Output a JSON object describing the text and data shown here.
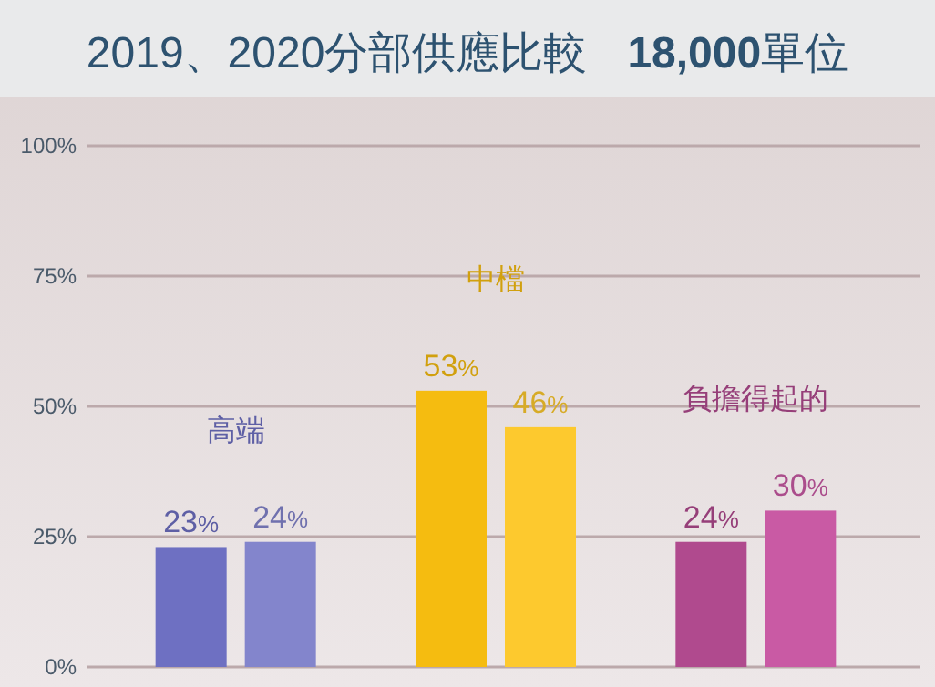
{
  "chart_data": {
    "type": "bar",
    "title": "2019、2020分部供應比較",
    "subtitle": "18,000單位",
    "categories": [
      "高端",
      "中檔",
      "負擔得起的"
    ],
    "series": [
      {
        "values": [
          23,
          53,
          24
        ],
        "colors": [
          "#6e70c2",
          "#f5bc10",
          "#b04a8e"
        ],
        "value_labels": [
          "23%",
          "53%",
          "24%"
        ]
      },
      {
        "values": [
          24,
          46,
          30
        ],
        "colors": [
          "#8385cc",
          "#fdc92e",
          "#c95aa4"
        ],
        "value_labels": [
          "24%",
          "46%",
          "30%"
        ]
      }
    ],
    "ylim": [
      0,
      100
    ],
    "yticks": [
      {
        "value": 0,
        "label": "0%"
      },
      {
        "value": 25,
        "label": "25%"
      },
      {
        "value": 50,
        "label": "50%"
      },
      {
        "value": 75,
        "label": "75%"
      },
      {
        "value": 100,
        "label": "100%"
      }
    ],
    "grid": "y"
  }
}
